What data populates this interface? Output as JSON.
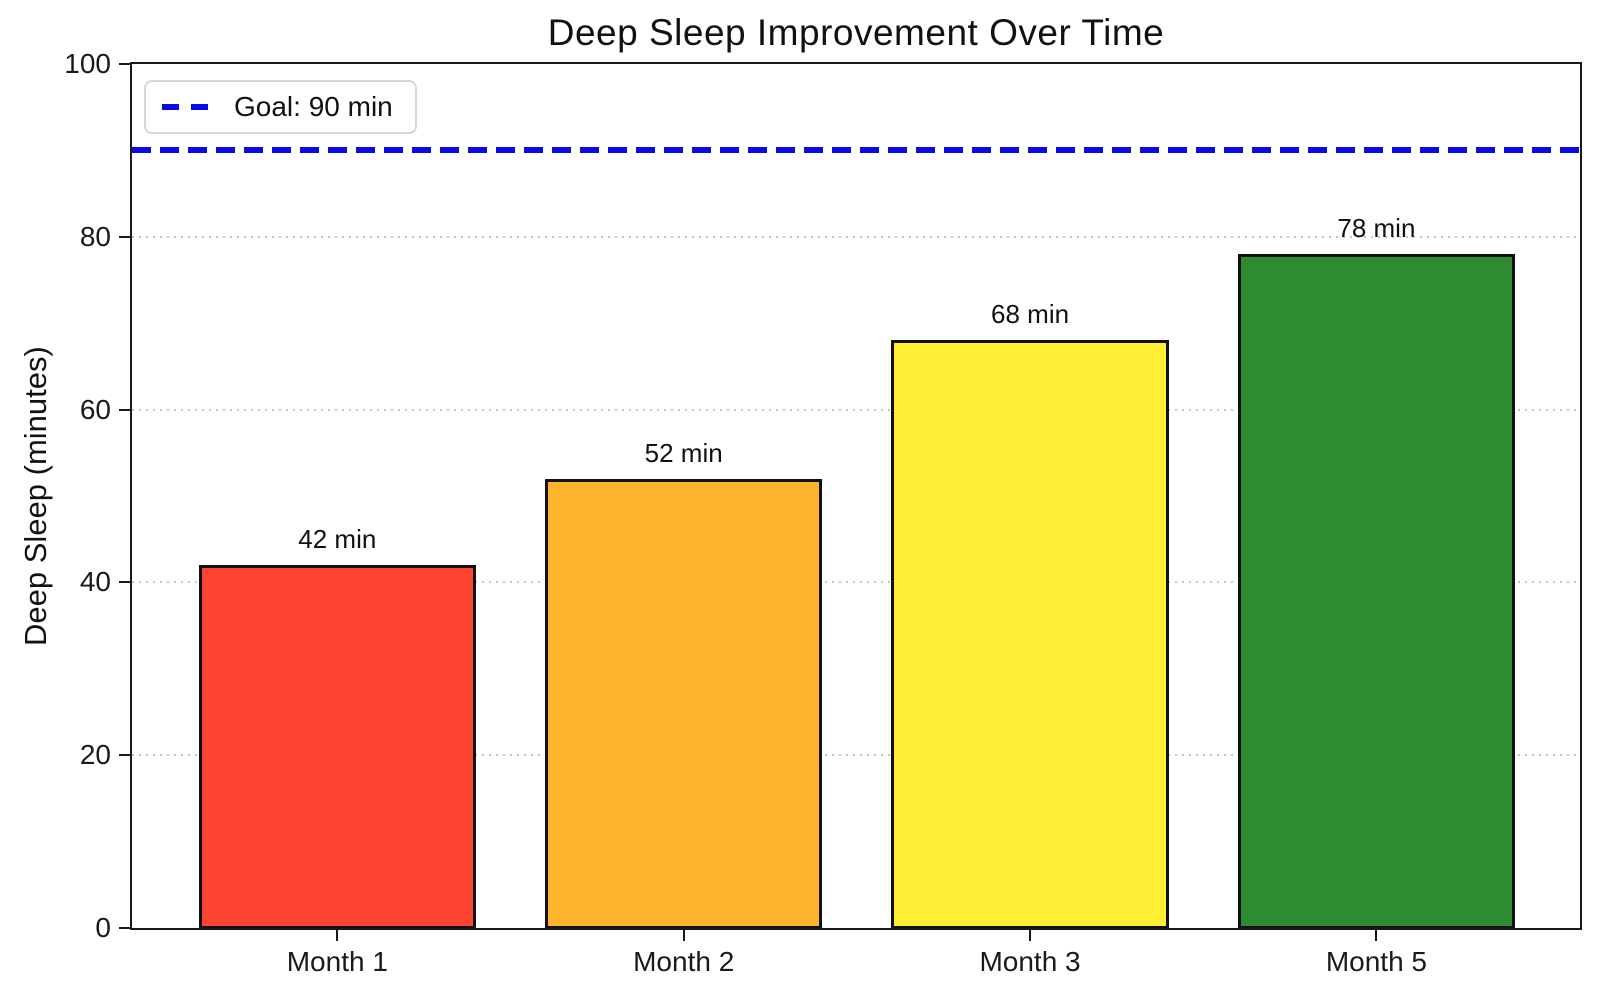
{
  "chart_data": {
    "type": "bar",
    "title": "Deep Sleep Improvement Over Time",
    "xlabel": "",
    "ylabel": "Deep Sleep (minutes)",
    "categories": [
      "Month 1",
      "Month 2",
      "Month 3",
      "Month 5"
    ],
    "values": [
      42,
      52,
      68,
      78
    ],
    "bar_labels": [
      "42 min",
      "52 min",
      "68 min",
      "78 min"
    ],
    "bar_colors": [
      "#FF4433",
      "#FFB42D",
      "#FFEE33",
      "#2E8B32"
    ],
    "bar_edge_color": "#111111",
    "ylim": [
      0,
      100
    ],
    "yticks": [
      0,
      20,
      40,
      60,
      80,
      100
    ],
    "grid": {
      "axis": "y",
      "style": "dotted",
      "color": "#c6c6c6",
      "levels": [
        20,
        40,
        60,
        80
      ]
    },
    "goal_line": {
      "value": 90,
      "label": "Goal: 90 min",
      "color": "#0A0AE6",
      "style": "dashed"
    },
    "legend": {
      "position": "upper left",
      "entries": [
        {
          "label": "Goal: 90 min",
          "color": "#0A0AE6",
          "style": "dashed"
        }
      ]
    }
  }
}
